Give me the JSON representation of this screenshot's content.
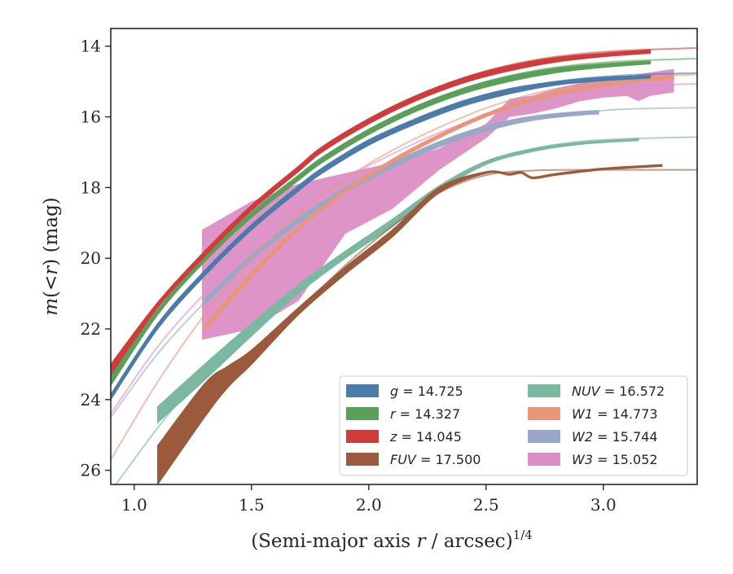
{
  "chart_data": {
    "type": "line",
    "xlabel": "(Semi-major axis r / arcsec)",
    "xlabel_var": "r",
    "xlabel_exp": "1/4",
    "ylabel": "m(<r) (mag)",
    "xlim": [
      0.9,
      3.4
    ],
    "ylim": [
      26.4,
      13.5
    ],
    "y_inverted": true,
    "xticks": [
      "1.0",
      "1.5",
      "2.0",
      "2.5",
      "3.0"
    ],
    "yticks": [
      "14",
      "16",
      "18",
      "20",
      "22",
      "24",
      "26"
    ],
    "grid": false,
    "legend": {
      "placement": "lower-right",
      "columns": 2
    },
    "series": [
      {
        "name": "g",
        "label": "g = 14.725",
        "color": "#4c7bab",
        "model_x": [
          0.9,
          1.1,
          1.3,
          1.5,
          1.7,
          1.9,
          2.1,
          2.3,
          2.5,
          2.7,
          2.9,
          3.1,
          3.4
        ],
        "model_y": [
          23.9,
          21.9,
          20.4,
          19.1,
          18.0,
          17.15,
          16.45,
          15.85,
          15.4,
          15.1,
          14.92,
          14.82,
          14.76
        ],
        "data_x": [
          0.9,
          1.1,
          1.3,
          1.5,
          1.7,
          1.8,
          2.0,
          2.2,
          2.4,
          2.6,
          2.8,
          3.0,
          3.2
        ],
        "data_y_hi": [
          23.85,
          21.85,
          20.35,
          19.05,
          17.95,
          17.45,
          16.65,
          16.05,
          15.55,
          15.2,
          15.0,
          14.88,
          14.83
        ],
        "data_y_lo": [
          24.0,
          22.0,
          20.5,
          19.2,
          18.1,
          17.6,
          16.8,
          16.2,
          15.7,
          15.35,
          15.1,
          14.98,
          14.9
        ]
      },
      {
        "name": "r",
        "label": "r = 14.327",
        "color": "#5aa05a",
        "model_x": [
          0.9,
          1.1,
          1.3,
          1.5,
          1.7,
          1.9,
          2.1,
          2.3,
          2.5,
          2.7,
          2.9,
          3.1,
          3.4
        ],
        "model_y": [
          23.4,
          21.5,
          20.0,
          18.75,
          17.7,
          16.8,
          16.05,
          15.45,
          15.0,
          14.7,
          14.52,
          14.42,
          14.35
        ],
        "data_x": [
          0.9,
          1.1,
          1.3,
          1.5,
          1.7,
          1.8,
          2.0,
          2.2,
          2.4,
          2.6,
          2.8,
          3.0,
          3.2
        ],
        "data_y_hi": [
          23.3,
          21.45,
          19.95,
          18.7,
          17.65,
          17.15,
          16.35,
          15.7,
          15.2,
          14.85,
          14.62,
          14.5,
          14.42
        ],
        "data_y_lo": [
          23.6,
          21.6,
          20.1,
          18.85,
          17.8,
          17.3,
          16.5,
          15.85,
          15.35,
          15.0,
          14.75,
          14.6,
          14.5
        ]
      },
      {
        "name": "z",
        "label": "z = 14.045",
        "color": "#d03c3c",
        "model_x": [
          0.9,
          1.1,
          1.3,
          1.5,
          1.7,
          1.9,
          2.1,
          2.3,
          2.5,
          2.7,
          2.9,
          3.1,
          3.4
        ],
        "model_y": [
          23.1,
          21.3,
          19.85,
          18.55,
          17.45,
          16.55,
          15.75,
          15.15,
          14.7,
          14.4,
          14.22,
          14.12,
          14.05
        ],
        "data_x": [
          0.9,
          1.1,
          1.3,
          1.5,
          1.7,
          1.8,
          2.0,
          2.2,
          2.4,
          2.6,
          2.8,
          3.0,
          3.2
        ],
        "data_y_hi": [
          23.0,
          21.25,
          19.8,
          18.5,
          17.4,
          16.85,
          16.05,
          15.4,
          14.9,
          14.55,
          14.32,
          14.2,
          14.1
        ],
        "data_y_lo": [
          23.3,
          21.4,
          19.95,
          18.65,
          17.55,
          17.0,
          16.2,
          15.55,
          15.05,
          14.7,
          14.45,
          14.3,
          14.2
        ]
      },
      {
        "name": "FUV",
        "label": "FUV = 17.500",
        "color": "#9b5a3c",
        "model_x": [
          1.1,
          1.3,
          1.5,
          1.7,
          1.9,
          2.1,
          2.3,
          2.5,
          2.7,
          2.9,
          3.1,
          3.4
        ],
        "model_y": [
          26.3,
          24.3,
          22.9,
          21.5,
          20.2,
          19.1,
          18.15,
          17.65,
          17.52,
          17.5,
          17.5,
          17.5
        ],
        "data_x": [
          1.1,
          1.3,
          1.4,
          1.5,
          1.7,
          1.9,
          2.1,
          2.3,
          2.5,
          2.6,
          2.65,
          2.7,
          2.8,
          3.0,
          3.25
        ],
        "data_y_hi": [
          25.3,
          23.55,
          23.05,
          22.6,
          21.4,
          20.25,
          19.2,
          18.0,
          17.55,
          17.6,
          17.55,
          17.7,
          17.6,
          17.45,
          17.35
        ],
        "data_y_lo": [
          26.4,
          24.5,
          23.65,
          23.0,
          21.6,
          20.45,
          19.4,
          18.15,
          17.6,
          17.65,
          17.6,
          17.75,
          17.65,
          17.5,
          17.4
        ]
      },
      {
        "name": "NUV",
        "label": "NUV = 16.572",
        "color": "#7ab8a2",
        "model_x": [
          0.9,
          1.1,
          1.3,
          1.5,
          1.7,
          1.9,
          2.1,
          2.3,
          2.5,
          2.7,
          2.9,
          3.1,
          3.4
        ],
        "model_y": [
          26.6,
          24.8,
          23.2,
          21.95,
          20.85,
          19.85,
          19.0,
          18.05,
          17.3,
          16.9,
          16.7,
          16.62,
          16.57
        ],
        "data_x": [
          1.1,
          1.3,
          1.5,
          1.7,
          1.9,
          2.1,
          2.3,
          2.5,
          2.7,
          2.9,
          3.15
        ],
        "data_y_hi": [
          24.2,
          23.0,
          21.85,
          20.75,
          19.8,
          18.9,
          17.95,
          17.25,
          16.9,
          16.72,
          16.62
        ],
        "data_y_lo": [
          24.65,
          23.45,
          22.2,
          21.0,
          20.0,
          19.1,
          18.1,
          17.35,
          16.98,
          16.78,
          16.67
        ]
      },
      {
        "name": "W1",
        "label": "W1 = 14.773",
        "color": "#e8967a",
        "model_x": [
          0.9,
          1.1,
          1.3,
          1.5,
          1.7,
          1.9,
          2.1,
          2.3,
          2.5,
          2.7,
          2.9,
          3.1,
          3.4
        ],
        "model_y": [
          25.7,
          23.5,
          21.6,
          20.0,
          18.75,
          17.75,
          16.95,
          16.3,
          15.75,
          15.35,
          15.08,
          14.9,
          14.8
        ],
        "data_x": [
          1.3,
          1.5,
          1.7,
          1.9,
          2.1,
          2.3,
          2.5,
          2.7,
          2.9,
          3.1,
          3.3
        ],
        "data_y_hi": [
          21.9,
          20.4,
          19.1,
          18.05,
          17.2,
          16.5,
          15.9,
          15.45,
          15.15,
          14.95,
          14.85
        ],
        "data_y_lo": [
          22.05,
          20.55,
          19.2,
          18.15,
          17.3,
          16.6,
          16.0,
          15.55,
          15.25,
          15.05,
          14.93
        ]
      },
      {
        "name": "W2",
        "label": "W2 = 15.744",
        "color": "#9aa8c8",
        "model_x": [
          0.9,
          1.1,
          1.3,
          1.5,
          1.7,
          1.9,
          2.1,
          2.3,
          2.5,
          2.7,
          2.9,
          3.1,
          3.4
        ],
        "model_y": [
          24.5,
          22.7,
          21.25,
          20.0,
          18.95,
          18.1,
          17.4,
          16.8,
          16.35,
          16.05,
          15.88,
          15.78,
          15.74
        ],
        "data_x": [
          1.3,
          1.5,
          1.7,
          1.9,
          2.1,
          2.3,
          2.5,
          2.7,
          2.9,
          2.98
        ],
        "data_y_hi": [
          21.15,
          19.9,
          18.85,
          18.0,
          17.3,
          16.7,
          16.25,
          15.98,
          15.85,
          15.82
        ],
        "data_y_lo": [
          21.3,
          20.05,
          19.0,
          18.15,
          17.45,
          16.85,
          16.4,
          16.1,
          15.95,
          15.92
        ]
      },
      {
        "name": "W3",
        "label": "W3 = 15.052",
        "color": "#dc8ec4",
        "model_x": [
          0.9,
          1.1,
          1.3,
          1.5,
          1.7,
          1.9,
          2.1,
          2.3,
          2.5,
          2.7,
          2.9,
          3.1,
          3.4
        ],
        "model_y": [
          24.4,
          22.5,
          21.0,
          19.7,
          18.6,
          17.75,
          17.05,
          16.45,
          15.95,
          15.55,
          15.3,
          15.15,
          15.06
        ],
        "data_x": [
          1.29,
          1.5,
          1.7,
          1.9,
          2.1,
          2.3,
          2.5,
          2.6,
          2.7,
          2.8,
          2.9,
          3.0,
          3.1,
          3.15,
          3.2,
          3.3
        ],
        "data_y_hi": [
          19.2,
          18.4,
          17.9,
          17.6,
          17.3,
          16.9,
          16.2,
          15.5,
          15.4,
          15.2,
          15.05,
          14.95,
          14.9,
          14.8,
          14.75,
          14.65
        ],
        "data_y_lo": [
          22.3,
          22.0,
          21.2,
          19.3,
          18.6,
          17.5,
          16.6,
          16.0,
          15.9,
          15.75,
          15.55,
          15.45,
          15.4,
          15.55,
          15.4,
          15.3
        ]
      }
    ]
  }
}
